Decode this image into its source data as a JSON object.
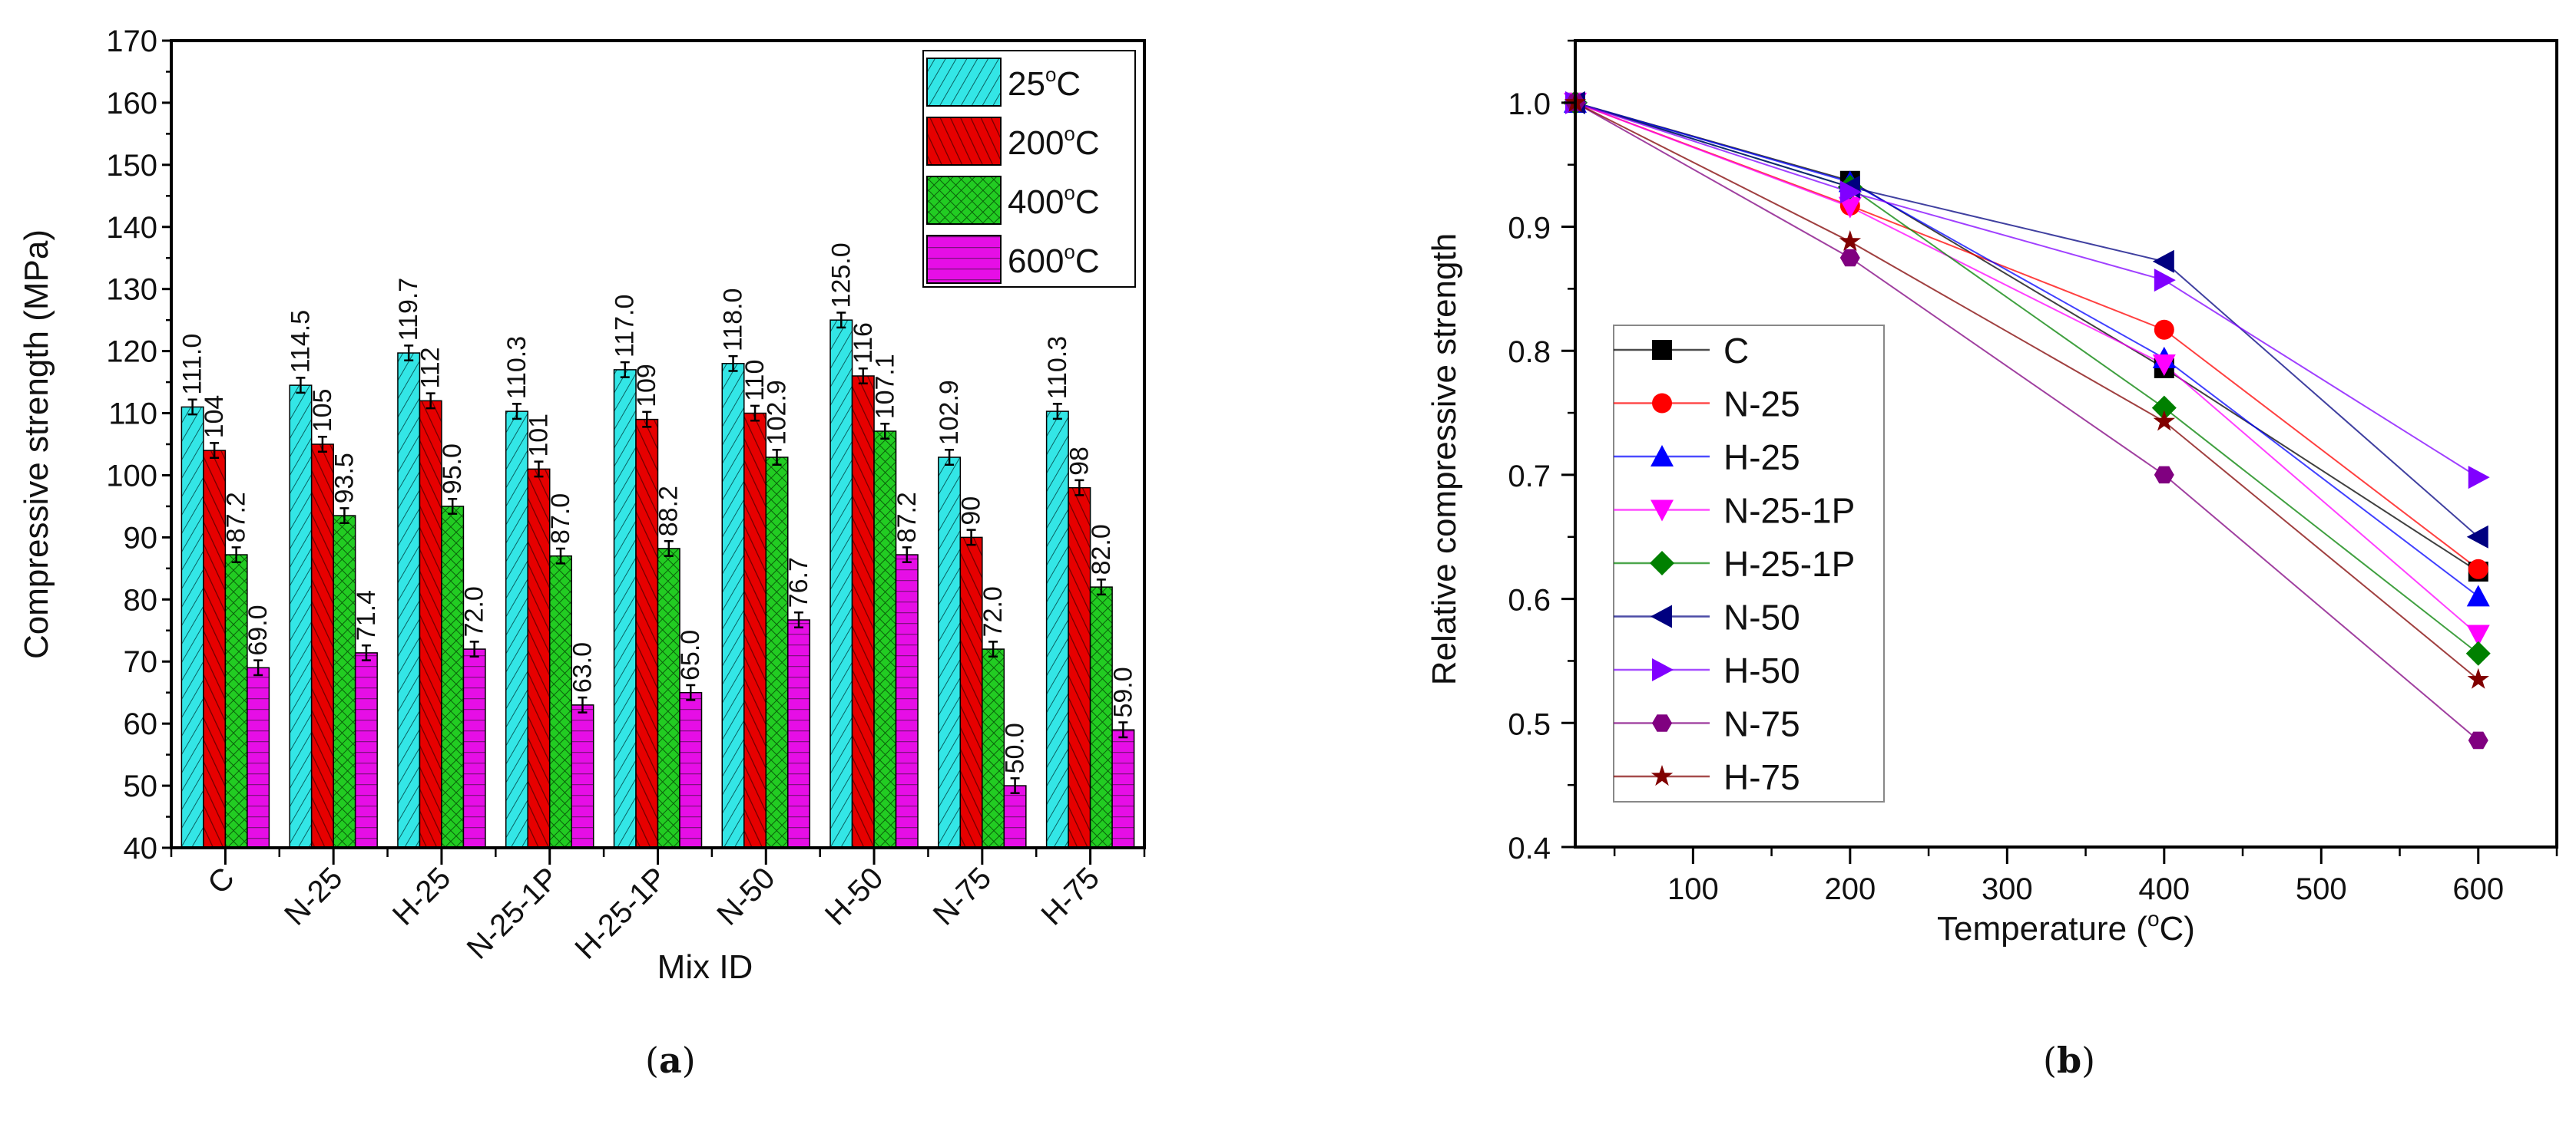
{
  "panels": {
    "a_open": "(",
    "a_letter": "a",
    "a_close": ")",
    "b_open": "(",
    "b_letter": "b",
    "b_close": ")"
  },
  "chart_data": [
    {
      "type": "bar",
      "title": "",
      "xlabel": "Mix ID",
      "ylabel": "Compressive strength (MPa)",
      "ylim": [
        40,
        170
      ],
      "yticks": [
        40,
        50,
        60,
        70,
        80,
        90,
        100,
        110,
        120,
        130,
        140,
        150,
        160,
        170
      ],
      "categories": [
        "C",
        "N-25",
        "H-25",
        "N-25-1P",
        "H-25-1P",
        "N-50",
        "H-50",
        "N-75",
        "H-75"
      ],
      "legend_position": "top-right",
      "error_approx": 1.2,
      "series": [
        {
          "name": "25",
          "unit": "oC",
          "color": "#33e6e6",
          "pattern": "diagonal",
          "values": [
            111.0,
            114.5,
            119.7,
            110.3,
            117.0,
            118.0,
            125.0,
            102.9,
            110.3
          ],
          "labels": [
            "111.0",
            "114.5",
            "119.7",
            "110.3",
            "117.0",
            "118.0",
            "125.0",
            "102.9",
            "110.3"
          ]
        },
        {
          "name": "200",
          "unit": "oC",
          "color": "#e60000",
          "pattern": "back-diagonal",
          "values": [
            104,
            105,
            112,
            101,
            109,
            110,
            116,
            90,
            98
          ],
          "labels": [
            "104",
            "105",
            "112",
            "101",
            "109",
            "110",
            "116",
            "90",
            "98"
          ]
        },
        {
          "name": "400",
          "unit": "oC",
          "color": "#22cc22",
          "pattern": "crosshatch",
          "values": [
            87.2,
            93.5,
            95.0,
            87.0,
            88.2,
            102.9,
            107.1,
            72.0,
            82.0
          ],
          "labels": [
            "87.2",
            "93.5",
            "95.0",
            "87.0",
            "88.2",
            "102.9",
            "107.1",
            "72.0",
            "82.0"
          ]
        },
        {
          "name": "600",
          "unit": "oC",
          "color": "#e60ee6",
          "pattern": "horizontal",
          "values": [
            69.0,
            71.4,
            72.0,
            63.0,
            65.0,
            76.7,
            87.2,
            50.0,
            59.0
          ],
          "labels": [
            "69.0",
            "71.4",
            "72.0",
            "63.0",
            "65.0",
            "76.7",
            "87.2",
            "50.0",
            "59.0"
          ]
        }
      ]
    },
    {
      "type": "line",
      "title": "",
      "xlabel": "Temperature (",
      "xlabel_unit": "o",
      "xlabel_end": "C)",
      "ylabel": "Relative compressive strength",
      "xlim": [
        25,
        650
      ],
      "ylim": [
        0.4,
        1.05
      ],
      "xticks": [
        100,
        200,
        300,
        400,
        500,
        600
      ],
      "yticks": [
        "0.4",
        "0.5",
        "0.6",
        "0.7",
        "0.8",
        "0.9",
        "1.0"
      ],
      "x": [
        25,
        200,
        400,
        600
      ],
      "legend_position": "left-middle",
      "series": [
        {
          "name": "C",
          "color": "#000000",
          "marker": "square",
          "values": [
            1.0,
            0.937,
            0.786,
            0.622
          ]
        },
        {
          "name": "N-25",
          "color": "#ff0000",
          "marker": "circle",
          "values": [
            1.0,
            0.917,
            0.817,
            0.624
          ]
        },
        {
          "name": "H-25",
          "color": "#0000ff",
          "marker": "triangle-up",
          "values": [
            1.0,
            0.936,
            0.794,
            0.602
          ]
        },
        {
          "name": "N-25-1P",
          "color": "#ff00ff",
          "marker": "triangle-down",
          "values": [
            1.0,
            0.916,
            0.789,
            0.571
          ]
        },
        {
          "name": "H-25-1P",
          "color": "#008000",
          "marker": "diamond",
          "values": [
            1.0,
            0.932,
            0.754,
            0.556
          ]
        },
        {
          "name": "N-50",
          "color": "#000080",
          "marker": "triangle-left",
          "values": [
            1.0,
            0.932,
            0.872,
            0.65
          ]
        },
        {
          "name": "H-50",
          "color": "#8000ff",
          "marker": "triangle-right",
          "values": [
            1.0,
            0.928,
            0.857,
            0.698
          ]
        },
        {
          "name": "N-75",
          "color": "#800080",
          "marker": "hexagon",
          "values": [
            1.0,
            0.875,
            0.7,
            0.486
          ]
        },
        {
          "name": "H-75",
          "color": "#800000",
          "marker": "star",
          "values": [
            1.0,
            0.888,
            0.743,
            0.535
          ]
        }
      ]
    }
  ]
}
